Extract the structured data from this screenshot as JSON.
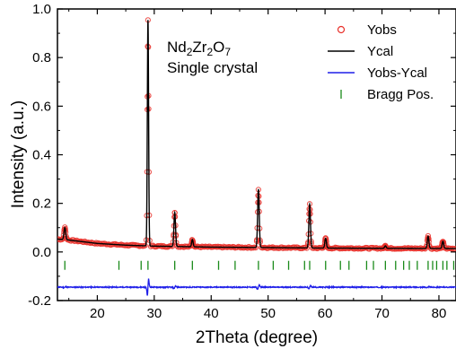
{
  "chart_data": {
    "type": "scatter",
    "xlabel": "2Theta (degree)",
    "ylabel": "Intensity (a.u.)",
    "xlim": [
      13,
      83
    ],
    "ylim": [
      -0.2,
      1.0
    ],
    "xticks": [
      "20",
      "30",
      "40",
      "50",
      "60",
      "70",
      "80"
    ],
    "yticks": [
      "-0.2",
      "0.0",
      "0.2",
      "0.4",
      "0.6",
      "0.8",
      "1.0"
    ],
    "legend_position": "top-right",
    "annotation": {
      "line1_parts": [
        "Nd",
        "2",
        "Zr",
        "2",
        "O",
        "7"
      ],
      "line2": "Single crystal"
    },
    "series": [
      {
        "name": "Yobs",
        "style": "open-circle",
        "color": "#e8302a"
      },
      {
        "name": "Ycal",
        "style": "line",
        "color": "#000000"
      },
      {
        "name": "Yobs-Ycal",
        "style": "line",
        "color": "#1f1fe8"
      },
      {
        "name": "Bragg Pos.",
        "style": "tick",
        "color": "#1a8a1a"
      }
    ],
    "baseline": {
      "x": [
        13,
        15,
        20,
        25,
        30,
        40,
        50,
        60,
        70,
        83
      ],
      "y": [
        0.053,
        0.049,
        0.035,
        0.028,
        0.024,
        0.02,
        0.018,
        0.016,
        0.015,
        0.014
      ]
    },
    "peaks": [
      {
        "x": 14.3,
        "height": 0.05,
        "width": 0.15
      },
      {
        "x": 28.9,
        "height": 0.93,
        "width": 0.11
      },
      {
        "x": 33.6,
        "height": 0.14,
        "width": 0.14
      },
      {
        "x": 36.7,
        "height": 0.03,
        "width": 0.13
      },
      {
        "x": 48.3,
        "height": 0.24,
        "width": 0.14
      },
      {
        "x": 57.3,
        "height": 0.18,
        "width": 0.14
      },
      {
        "x": 60.1,
        "height": 0.04,
        "width": 0.14
      },
      {
        "x": 70.6,
        "height": 0.01,
        "width": 0.14
      },
      {
        "x": 78.1,
        "height": 0.05,
        "width": 0.14
      },
      {
        "x": 80.7,
        "height": 0.03,
        "width": 0.14
      }
    ],
    "difference_offset": -0.145,
    "bragg_y": -0.055,
    "bragg_positions": [
      14.3,
      23.8,
      27.7,
      28.9,
      33.6,
      36.7,
      41.3,
      44.2,
      48.3,
      50.9,
      53.6,
      56.4,
      57.3,
      60.1,
      62.7,
      64.2,
      67.3,
      68.5,
      70.6,
      72.4,
      73.8,
      74.8,
      76.2,
      78.1,
      78.9,
      79.6,
      80.7,
      81.4,
      82.6
    ]
  }
}
